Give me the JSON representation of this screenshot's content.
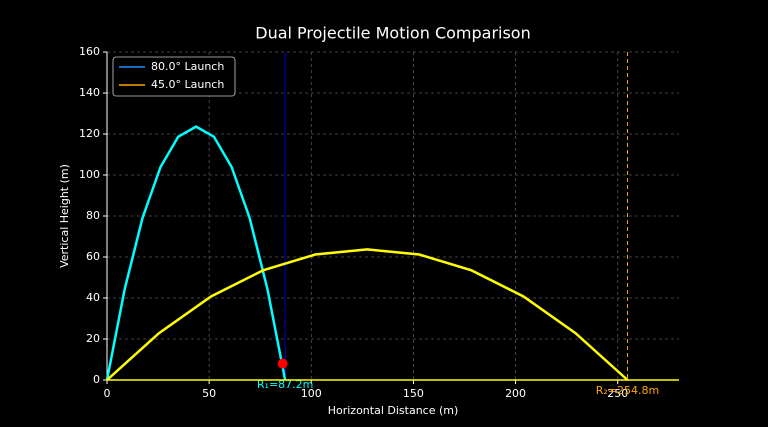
{
  "chart_data": {
    "type": "line",
    "title": "Dual Projectile Motion Comparison",
    "x_label": "Horizontal Distance (m)",
    "y_label": "Vertical Height (m)",
    "xlim": [
      0,
      280
    ],
    "ylim": [
      0,
      160
    ],
    "xticks": [
      0,
      50,
      100,
      150,
      200,
      250
    ],
    "yticks": [
      0,
      20,
      40,
      60,
      80,
      100,
      120,
      140,
      160
    ],
    "grid": true,
    "legend": "upper left",
    "series": [
      {
        "name": "80.0° Launch",
        "color": "#00ffff",
        "legend_color": "#1e90ff",
        "x": [
          0,
          8.7,
          17.4,
          26.2,
          34.9,
          43.6,
          52.3,
          61.0,
          69.8,
          78.5,
          87.2
        ],
        "values": [
          0,
          44.5,
          79.1,
          103.9,
          118.7,
          123.6,
          118.7,
          103.9,
          79.1,
          44.5,
          0
        ]
      },
      {
        "name": "45.0° Launch",
        "color": "#ffff00",
        "legend_color": "#ffa500",
        "x": [
          0,
          25.5,
          51.0,
          76.4,
          101.9,
          127.4,
          152.9,
          178.4,
          203.8,
          229.3,
          254.8
        ],
        "values": [
          0,
          22.9,
          40.8,
          53.5,
          61.2,
          63.7,
          61.2,
          53.5,
          40.8,
          22.9,
          0
        ]
      }
    ],
    "range_markers": [
      {
        "x": 87.2,
        "label": "R₁=87.2m",
        "color": "#0000cd",
        "text_color": "#00ffff",
        "dashed": false
      },
      {
        "x": 254.8,
        "label": "R₂=254.8m",
        "color": "#ffa500",
        "text_color": "#ffa500",
        "dashed": true
      }
    ],
    "marker": {
      "x": 86,
      "y": 8,
      "color": "#ff0000"
    }
  }
}
